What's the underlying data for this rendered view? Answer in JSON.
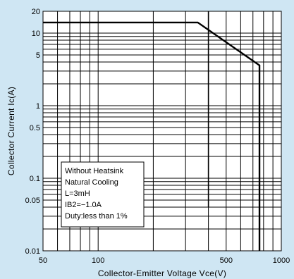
{
  "chart_data": {
    "type": "line",
    "title": "",
    "xlabel": "Collector-Emitter Voltage Vce(V)",
    "ylabel": "Collector Current Ic(A)",
    "x_scale": "log",
    "y_scale": "log",
    "xlim": [
      50,
      1000
    ],
    "ylim": [
      0.01,
      20
    ],
    "grid": true,
    "x_ticks": [
      {
        "value": 50,
        "label": "50"
      },
      {
        "value": 100,
        "label": "100"
      },
      {
        "value": 500,
        "label": "500"
      },
      {
        "value": 1000,
        "label": "1000"
      }
    ],
    "y_ticks": [
      {
        "value": 0.01,
        "label": "0.01"
      },
      {
        "value": 0.05,
        "label": "0.05"
      },
      {
        "value": 0.1,
        "label": "0.1"
      },
      {
        "value": 0.5,
        "label": "0.5"
      },
      {
        "value": 1,
        "label": "1"
      },
      {
        "value": 5,
        "label": "5"
      },
      {
        "value": 10,
        "label": "10"
      },
      {
        "value": 20,
        "label": "20"
      }
    ],
    "series": [
      {
        "name": "",
        "x": [
          50,
          350,
          760,
          760
        ],
        "y": [
          14,
          14,
          3.6,
          0.01
        ]
      }
    ],
    "reference_lines": [
      {
        "x": 400,
        "y_from": 0.04,
        "y_to": 20
      }
    ],
    "annotation": {
      "lines": [
        "Without Heatsink",
        "Natural Cooling",
        "L=3mH",
        "IB2=−1.0A",
        "Duty:less than 1%"
      ]
    }
  }
}
